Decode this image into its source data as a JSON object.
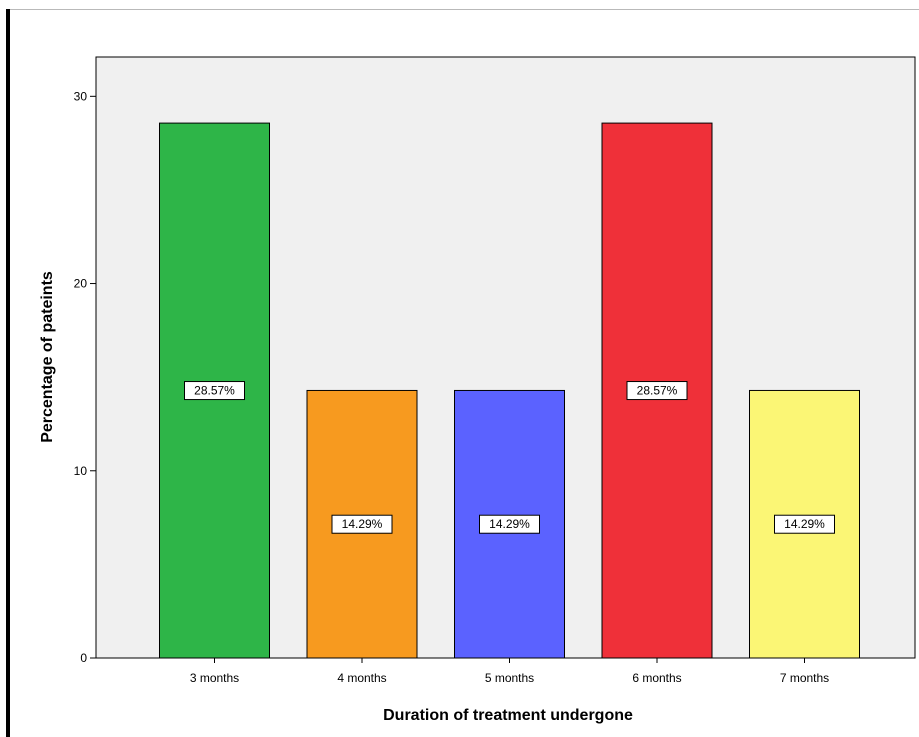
{
  "chart_data": {
    "type": "bar",
    "title": "",
    "xlabel": "Duration of treatment undergone",
    "ylabel": "Percentage of pateints",
    "categories": [
      "3 months",
      "4 months",
      "5 months",
      "6 months",
      "7 months"
    ],
    "values": [
      28.57,
      14.29,
      14.29,
      28.57,
      14.29
    ],
    "data_labels": [
      "28.57%",
      "14.29%",
      "14.29%",
      "28.57%",
      "14.29%"
    ],
    "colors": [
      "#2eb548",
      "#f79a1f",
      "#5b62ff",
      "#ef3039",
      "#fbf675"
    ],
    "yticks": [
      0,
      10,
      20,
      30
    ],
    "ylim": [
      0,
      32.1
    ],
    "plot_background": "#f0f0f0",
    "grid": false,
    "legend": "none"
  }
}
